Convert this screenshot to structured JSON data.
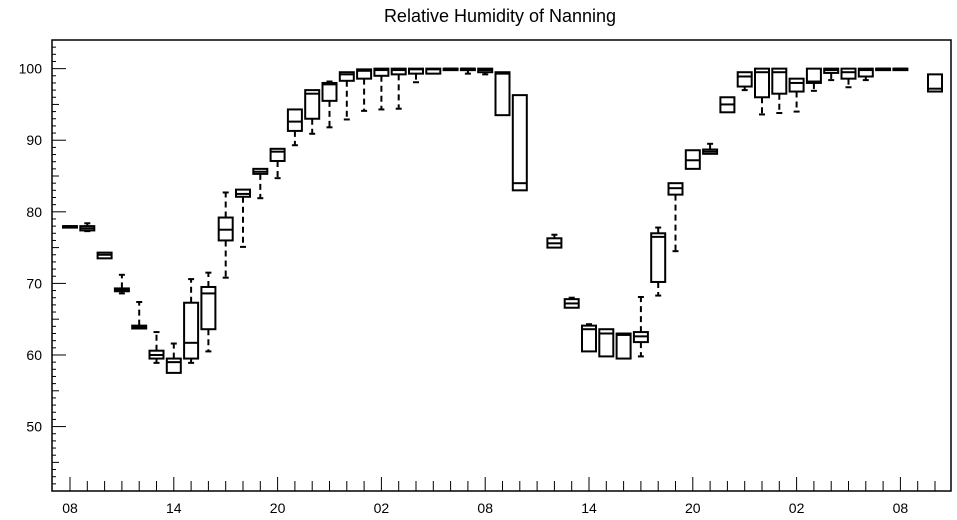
{
  "chart_data": {
    "type": "boxplot",
    "title": "Relative Humidity of Nanning",
    "xlabel": "",
    "ylabel": "",
    "ylim": [
      41,
      104
    ],
    "y_ticks": [
      50,
      60,
      70,
      80,
      90,
      100
    ],
    "x_tick_labels": [
      "08",
      "14",
      "20",
      "02",
      "08",
      "14",
      "20",
      "02",
      "08"
    ],
    "grid": false,
    "line_color": "#000000",
    "background": "#ffffff",
    "boxes": [
      {
        "slot": 0,
        "q1": 77.9,
        "q3": 78.0,
        "median": 78.0,
        "wlow": 77.9,
        "whigh": 78.0
      },
      {
        "slot": 1,
        "q1": 77.4,
        "q3": 78.0,
        "median": 77.7,
        "wlow": 77.3,
        "whigh": 78.4
      },
      {
        "slot": 2,
        "q1": 73.5,
        "q3": 74.3,
        "median": 74.0,
        "wlow": 73.5,
        "whigh": 74.3
      },
      {
        "slot": 3,
        "q1": 68.9,
        "q3": 69.3,
        "median": 69.1,
        "wlow": 68.6,
        "whigh": 71.2
      },
      {
        "slot": 4,
        "q1": 63.7,
        "q3": 64.1,
        "median": 63.9,
        "wlow": 63.7,
        "whigh": 67.4
      },
      {
        "slot": 5,
        "q1": 59.5,
        "q3": 60.6,
        "median": 60.0,
        "wlow": 58.9,
        "whigh": 63.2
      },
      {
        "slot": 6,
        "q1": 57.5,
        "q3": 59.5,
        "median": 59.0,
        "wlow": 57.5,
        "whigh": 61.6
      },
      {
        "slot": 7,
        "q1": 59.5,
        "q3": 67.3,
        "median": 61.7,
        "wlow": 58.9,
        "whigh": 70.6
      },
      {
        "slot": 8,
        "q1": 63.6,
        "q3": 69.5,
        "median": 68.6,
        "wlow": 60.5,
        "whigh": 71.5
      },
      {
        "slot": 9,
        "q1": 76.0,
        "q3": 79.2,
        "median": 77.5,
        "wlow": 70.8,
        "whigh": 82.7
      },
      {
        "slot": 10,
        "q1": 82.1,
        "q3": 83.1,
        "median": 82.5,
        "wlow": 75.1,
        "whigh": 83.1
      },
      {
        "slot": 11,
        "q1": 85.3,
        "q3": 86.0,
        "median": 85.6,
        "wlow": 81.9,
        "whigh": 86.0
      },
      {
        "slot": 12,
        "q1": 87.1,
        "q3": 88.8,
        "median": 88.4,
        "wlow": 84.7,
        "whigh": 88.8
      },
      {
        "slot": 13,
        "q1": 91.3,
        "q3": 94.3,
        "median": 92.6,
        "wlow": 89.3,
        "whigh": 94.3
      },
      {
        "slot": 14,
        "q1": 93.0,
        "q3": 97.0,
        "median": 96.5,
        "wlow": 90.9,
        "whigh": 97.0
      },
      {
        "slot": 15,
        "q1": 95.5,
        "q3": 98.0,
        "median": 97.8,
        "wlow": 91.8,
        "whigh": 98.2
      },
      {
        "slot": 16,
        "q1": 98.3,
        "q3": 99.5,
        "median": 99.2,
        "wlow": 92.9,
        "whigh": 99.5
      },
      {
        "slot": 17,
        "q1": 98.6,
        "q3": 99.9,
        "median": 99.7,
        "wlow": 94.1,
        "whigh": 99.9
      },
      {
        "slot": 18,
        "q1": 99.0,
        "q3": 100.0,
        "median": 99.8,
        "wlow": 94.3,
        "whigh": 100.0
      },
      {
        "slot": 19,
        "q1": 99.2,
        "q3": 100.0,
        "median": 99.8,
        "wlow": 94.4,
        "whigh": 100.0
      },
      {
        "slot": 20,
        "q1": 99.3,
        "q3": 100.0,
        "median": 99.9,
        "wlow": 98.1,
        "whigh": 100.0
      },
      {
        "slot": 21,
        "q1": 99.3,
        "q3": 100.0,
        "median": 99.9,
        "wlow": 99.3,
        "whigh": 100.0
      },
      {
        "slot": 22,
        "q1": 99.9,
        "q3": 100.0,
        "median": 100.0,
        "wlow": 99.9,
        "whigh": 100.0
      },
      {
        "slot": 23,
        "q1": 99.9,
        "q3": 100.0,
        "median": 100.0,
        "wlow": 99.3,
        "whigh": 100.0
      },
      {
        "slot": 24,
        "q1": 99.5,
        "q3": 100.0,
        "median": 99.8,
        "wlow": 99.2,
        "whigh": 100.0
      },
      {
        "slot": 25,
        "q1": 93.5,
        "q3": 99.5,
        "median": 99.3,
        "wlow": 93.5,
        "whigh": 99.5
      },
      {
        "slot": 26,
        "q1": 83.0,
        "q3": 96.3,
        "median": 84.0,
        "wlow": 83.0,
        "whigh": 96.3
      },
      {
        "slot": 28,
        "q1": 75.0,
        "q3": 76.3,
        "median": 75.6,
        "wlow": 75.0,
        "whigh": 76.8
      },
      {
        "slot": 29,
        "q1": 66.6,
        "q3": 67.8,
        "median": 67.2,
        "wlow": 66.6,
        "whigh": 68.0
      },
      {
        "slot": 30,
        "q1": 60.5,
        "q3": 64.1,
        "median": 63.6,
        "wlow": 60.5,
        "whigh": 64.3
      },
      {
        "slot": 31,
        "q1": 59.8,
        "q3": 63.6,
        "median": 63.0,
        "wlow": 59.8,
        "whigh": 63.6
      },
      {
        "slot": 32,
        "q1": 59.5,
        "q3": 63.0,
        "median": 62.8,
        "wlow": 59.5,
        "whigh": 63.0
      },
      {
        "slot": 33,
        "q1": 61.8,
        "q3": 63.2,
        "median": 62.6,
        "wlow": 59.8,
        "whigh": 68.1
      },
      {
        "slot": 34,
        "q1": 70.2,
        "q3": 77.0,
        "median": 76.5,
        "wlow": 68.3,
        "whigh": 77.8
      },
      {
        "slot": 35,
        "q1": 82.4,
        "q3": 84.0,
        "median": 83.3,
        "wlow": 74.5,
        "whigh": 84.0
      },
      {
        "slot": 36,
        "q1": 86.0,
        "q3": 88.6,
        "median": 87.2,
        "wlow": 86.0,
        "whigh": 88.6
      },
      {
        "slot": 37,
        "q1": 88.1,
        "q3": 88.7,
        "median": 88.4,
        "wlow": 88.1,
        "whigh": 89.5
      },
      {
        "slot": 38,
        "q1": 93.9,
        "q3": 96.0,
        "median": 95.0,
        "wlow": 93.9,
        "whigh": 96.0
      },
      {
        "slot": 39,
        "q1": 97.5,
        "q3": 99.5,
        "median": 98.9,
        "wlow": 97.0,
        "whigh": 99.5
      },
      {
        "slot": 40,
        "q1": 96.0,
        "q3": 100.0,
        "median": 99.5,
        "wlow": 93.6,
        "whigh": 100.0
      },
      {
        "slot": 41,
        "q1": 96.5,
        "q3": 100.0,
        "median": 99.5,
        "wlow": 93.8,
        "whigh": 100.0
      },
      {
        "slot": 42,
        "q1": 96.8,
        "q3": 98.6,
        "median": 98.0,
        "wlow": 94.0,
        "whigh": 98.6
      },
      {
        "slot": 43,
        "q1": 98.0,
        "q3": 100.0,
        "median": 98.2,
        "wlow": 96.9,
        "whigh": 100.0
      },
      {
        "slot": 44,
        "q1": 99.4,
        "q3": 100.0,
        "median": 99.8,
        "wlow": 98.4,
        "whigh": 100.0
      },
      {
        "slot": 45,
        "q1": 98.6,
        "q3": 100.0,
        "median": 99.5,
        "wlow": 97.4,
        "whigh": 100.0
      },
      {
        "slot": 46,
        "q1": 98.9,
        "q3": 100.0,
        "median": 99.8,
        "wlow": 98.4,
        "whigh": 100.0
      },
      {
        "slot": 47,
        "q1": 99.9,
        "q3": 100.0,
        "median": 100.0,
        "wlow": 99.9,
        "whigh": 100.0
      },
      {
        "slot": 48,
        "q1": 99.9,
        "q3": 100.0,
        "median": 100.0,
        "wlow": 99.9,
        "whigh": 100.0
      },
      {
        "slot": 50,
        "q1": 96.8,
        "q3": 99.2,
        "median": 97.2,
        "wlow": 96.8,
        "whigh": 99.2
      }
    ]
  }
}
